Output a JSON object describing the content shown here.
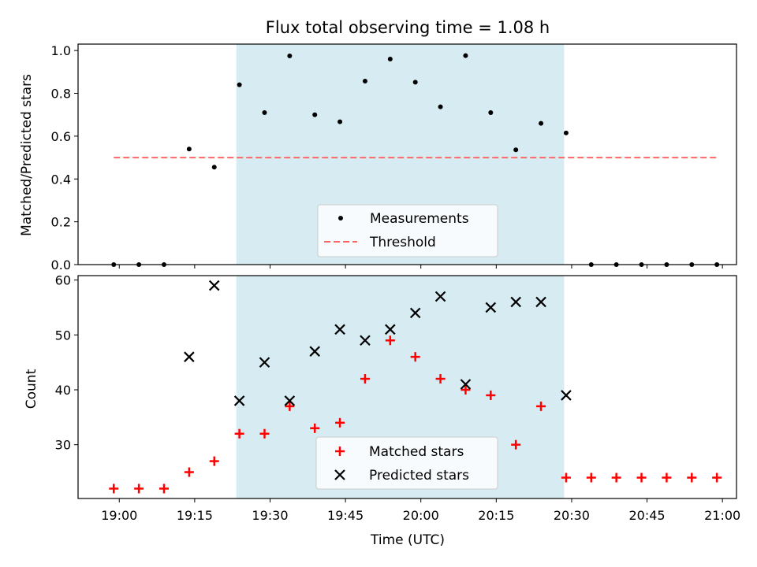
{
  "chart_data": [
    {
      "type": "scatter",
      "title": "Flux total observing time = 1.08 h",
      "xlabel": "",
      "ylabel": "Matched/Predicted stars",
      "ylim": [
        0,
        1.03
      ],
      "yticks": [
        "0.0",
        "0.2",
        "0.4",
        "0.6",
        "0.8",
        "1.0"
      ],
      "ytick_values": [
        0,
        0.2,
        0.4,
        0.6,
        0.8,
        1.0
      ],
      "x_unit": "time (UTC)",
      "xlim": [
        "18:51:48",
        "21:02:48"
      ],
      "shaded_span": {
        "start": "19:23:18",
        "end": "20:28:30",
        "color": "#add8e6"
      },
      "legend_position": "lower center",
      "series": [
        {
          "name": "Measurements",
          "marker": "dot",
          "color": "#000000",
          "x": [
            "18:58:54",
            "19:03:54",
            "19:08:54",
            "19:13:54",
            "19:18:54",
            "19:23:54",
            "19:28:54",
            "19:33:54",
            "19:38:54",
            "19:43:54",
            "19:48:54",
            "19:53:54",
            "19:58:54",
            "20:03:54",
            "20:08:54",
            "20:13:54",
            "20:18:54",
            "20:23:54",
            "20:28:54",
            "20:33:54",
            "20:38:54",
            "20:43:54",
            "20:48:54",
            "20:53:54",
            "20:58:54"
          ],
          "y": [
            0,
            0,
            0,
            0.54,
            0.455,
            0.84,
            0.71,
            0.975,
            0.7,
            0.667,
            0.857,
            0.96,
            0.852,
            0.737,
            0.976,
            0.71,
            0.536,
            0.66,
            0.615,
            0,
            0,
            0,
            0,
            0,
            0
          ]
        },
        {
          "name": "Threshold",
          "marker": "dashed-line",
          "color": "#ff6666",
          "x": [
            "18:58:54",
            "20:58:54"
          ],
          "y": [
            0.5,
            0.5
          ]
        }
      ]
    },
    {
      "type": "scatter",
      "title": "",
      "xlabel": "Time (UTC)",
      "ylabel": "Count",
      "ylim": [
        20.2,
        60.8
      ],
      "yticks": [
        "30",
        "40",
        "50",
        "60"
      ],
      "ytick_values": [
        30,
        40,
        50,
        60
      ],
      "xticks": [
        "19:00",
        "19:15",
        "19:30",
        "19:45",
        "20:00",
        "20:15",
        "20:30",
        "20:45",
        "21:00"
      ],
      "xtick_values": [
        "19:00:00",
        "19:15:00",
        "19:30:00",
        "19:45:00",
        "20:00:00",
        "20:15:00",
        "20:30:00",
        "20:45:00",
        "21:00:00"
      ],
      "xlim": [
        "18:51:48",
        "21:02:48"
      ],
      "shaded_span": {
        "start": "19:23:18",
        "end": "20:28:30",
        "color": "#add8e6"
      },
      "legend_position": "lower center",
      "series": [
        {
          "name": "Matched stars",
          "marker": "plus",
          "color": "#ff0000",
          "x": [
            "18:58:54",
            "19:03:54",
            "19:08:54",
            "19:13:54",
            "19:18:54",
            "19:23:54",
            "19:28:54",
            "19:33:54",
            "19:38:54",
            "19:43:54",
            "19:48:54",
            "19:53:54",
            "19:58:54",
            "20:03:54",
            "20:08:54",
            "20:13:54",
            "20:18:54",
            "20:23:54",
            "20:28:54",
            "20:33:54",
            "20:38:54",
            "20:43:54",
            "20:48:54",
            "20:53:54",
            "20:58:54"
          ],
          "y": [
            22,
            22,
            22,
            25,
            27,
            32,
            32,
            37,
            33,
            34,
            42,
            49,
            46,
            42,
            40,
            39,
            30,
            37,
            24,
            24,
            24,
            24,
            24,
            24,
            24
          ]
        },
        {
          "name": "Predicted stars",
          "marker": "x",
          "color": "#000000",
          "x": [
            "19:13:54",
            "19:18:54",
            "19:23:54",
            "19:28:54",
            "19:33:54",
            "19:38:54",
            "19:43:54",
            "19:48:54",
            "19:53:54",
            "19:58:54",
            "20:03:54",
            "20:08:54",
            "20:13:54",
            "20:18:54",
            "20:23:54",
            "20:28:54"
          ],
          "y": [
            46,
            59,
            38,
            45,
            38,
            47,
            51,
            49,
            51,
            54,
            57,
            41,
            55,
            56,
            56,
            39
          ]
        }
      ]
    }
  ]
}
